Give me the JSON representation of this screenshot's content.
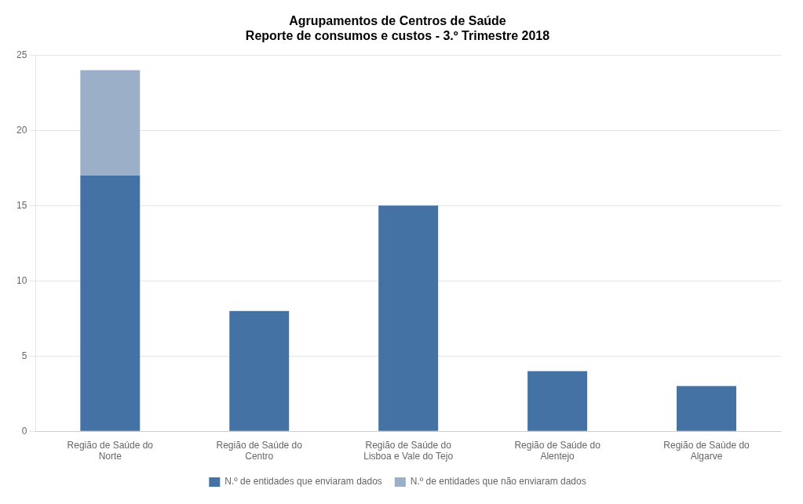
{
  "chart_data": {
    "type": "bar",
    "title": "Agrupamentos de Centros de Saúde\nReporte de consumos e custos - 3.º Trimestre 2018",
    "categories": [
      "Região de Saúde do\nNorte",
      "Região de Saúde do\nCentro",
      "Região de Saúde do\nLisboa e Vale do Tejo",
      "Região de Saúde do\nAlentejo",
      "Região de Saúde do\nAlgarve"
    ],
    "series": [
      {
        "name": "N.º de entidades que enviaram dados",
        "color": "#4472A4",
        "values": [
          17,
          8,
          15,
          4,
          3
        ]
      },
      {
        "name": "N.º de entidades que não enviaram dados",
        "color": "#9BAFC8",
        "values": [
          7,
          0,
          0,
          0,
          0
        ]
      }
    ],
    "stacked": true,
    "ylim": [
      0,
      25
    ],
    "yticks": [
      0,
      5,
      10,
      15,
      20,
      25
    ],
    "grid": true,
    "legend": "bottom"
  }
}
